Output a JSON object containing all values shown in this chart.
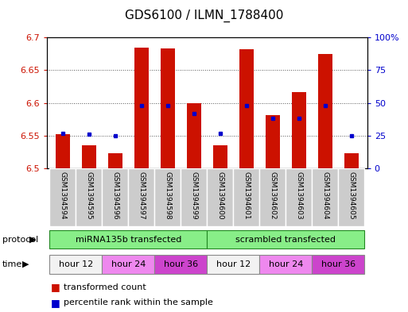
{
  "title": "GDS6100 / ILMN_1788400",
  "samples": [
    "GSM1394594",
    "GSM1394595",
    "GSM1394596",
    "GSM1394597",
    "GSM1394598",
    "GSM1394599",
    "GSM1394600",
    "GSM1394601",
    "GSM1394602",
    "GSM1394603",
    "GSM1394604",
    "GSM1394605"
  ],
  "bar_values": [
    6.552,
    6.536,
    6.523,
    6.685,
    6.683,
    6.6,
    6.536,
    6.682,
    6.582,
    6.617,
    6.675,
    6.523
  ],
  "percentile_values": [
    27,
    26,
    25,
    48,
    48,
    42,
    27,
    48,
    38,
    38,
    48,
    25
  ],
  "ylim_left": [
    6.5,
    6.7
  ],
  "ylim_right": [
    0,
    100
  ],
  "yticks_left": [
    6.5,
    6.55,
    6.6,
    6.65,
    6.7
  ],
  "yticks_right": [
    0,
    25,
    50,
    75,
    100
  ],
  "ytick_labels_left": [
    "6.5",
    "6.55",
    "6.6",
    "6.65",
    "6.7"
  ],
  "ytick_labels_right": [
    "0",
    "25",
    "50",
    "75",
    "100%"
  ],
  "bar_color": "#cc1100",
  "dot_color": "#0000cc",
  "base_value": 6.5,
  "protocol_labels": [
    "miRNA135b transfected",
    "scrambled transfected"
  ],
  "protocol_ranges": [
    [
      0,
      6
    ],
    [
      6,
      12
    ]
  ],
  "protocol_color": "#88ee88",
  "time_groups": [
    {
      "label": "hour 12",
      "range": [
        0,
        2
      ],
      "color": "#f2f2f2"
    },
    {
      "label": "hour 24",
      "range": [
        2,
        4
      ],
      "color": "#ee88ee"
    },
    {
      "label": "hour 36",
      "range": [
        4,
        6
      ],
      "color": "#cc44cc"
    },
    {
      "label": "hour 12",
      "range": [
        6,
        8
      ],
      "color": "#f2f2f2"
    },
    {
      "label": "hour 24",
      "range": [
        8,
        10
      ],
      "color": "#ee88ee"
    },
    {
      "label": "hour 36",
      "range": [
        10,
        12
      ],
      "color": "#cc44cc"
    }
  ],
  "grid_lines": [
    6.55,
    6.6,
    6.65
  ],
  "sample_bg_color": "#cccccc",
  "sample_border_color": "#ffffff",
  "fig_width": 5.13,
  "fig_height": 3.93,
  "dpi": 100
}
